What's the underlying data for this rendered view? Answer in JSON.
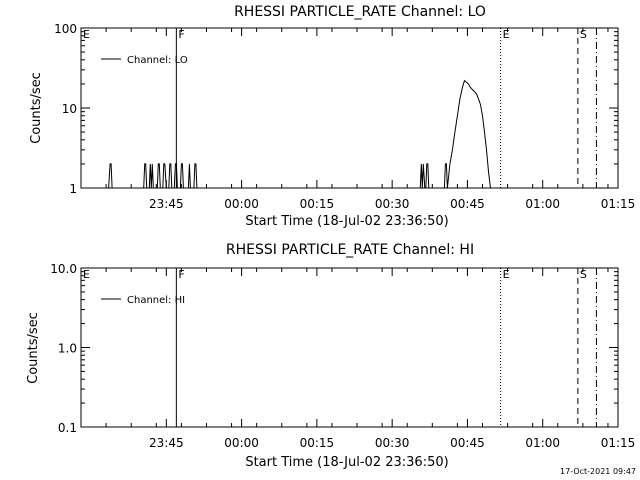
{
  "chart_data": [
    {
      "type": "line",
      "title": "RHESSI PARTICLE_RATE Channel: LO",
      "xlabel": "Start Time (18-Jul-02 23:36:50)",
      "ylabel": "Counts/sec",
      "yscale": "log",
      "ylim": [
        1,
        100
      ],
      "ytick_labels": [
        "1",
        "10",
        "100"
      ],
      "ytick_values": [
        1,
        10,
        100
      ],
      "xlim_min": [
        -9,
        98
      ],
      "xtick_labels": [
        "23:45",
        "00:00",
        "00:15",
        "00:30",
        "00:45",
        "01:00",
        "01:15"
      ],
      "xtick_values": [
        8,
        23,
        38,
        53,
        68,
        83,
        98
      ],
      "legend": "top-left",
      "markers": [
        {
          "label": "E",
          "x": -9,
          "style": "solid"
        },
        {
          "label": "F",
          "x": 10,
          "style": "solid"
        },
        {
          "label": "E",
          "x": 74.6,
          "style": "dotted"
        },
        {
          "label": "S",
          "x": 90,
          "style": "dashed"
        },
        {
          "label": "",
          "x": 93.7,
          "style": "dashdot"
        }
      ],
      "series": [
        {
          "name": "Channel: LO",
          "x": [
            -3.5,
            -3.2,
            -3,
            -2.8,
            -2.5,
            3.5,
            3.7,
            3.9,
            4.1,
            4.3,
            4.6,
            4.8,
            5,
            5.2,
            5.4,
            6.2,
            6.4,
            6.6,
            6.8,
            7,
            7.3,
            7.5,
            7.7,
            8,
            8.2,
            8.5,
            8.7,
            8.9,
            9.1,
            9.3,
            9.6,
            9.8,
            10,
            10.2,
            10.4,
            10.8,
            11,
            11.2,
            11.4,
            11.6,
            12.4,
            12.6,
            12.8,
            13,
            13.2,
            13.5,
            13.7,
            13.9,
            14.1,
            14.3,
            58.6,
            58.8,
            59,
            59.2,
            59.5,
            59.7,
            59.9,
            60.1,
            60.3,
            63.2,
            63.4,
            63.6,
            63.8,
            64,
            64.5,
            65,
            65.5,
            66,
            66.5,
            67,
            67.4,
            67.8,
            68.2,
            68.6,
            69,
            69.4,
            69.8,
            70.2,
            70.6,
            71,
            71.4,
            71.8,
            72.2,
            72.6
          ],
          "y": [
            1,
            2,
            2,
            1,
            1,
            1,
            2,
            2,
            1,
            1,
            1,
            2,
            1,
            2,
            1,
            1,
            2,
            2,
            1,
            1,
            1,
            2,
            2,
            1,
            1,
            1,
            2,
            2,
            1,
            1,
            1,
            2,
            2,
            1,
            1,
            1,
            2,
            2,
            1,
            1,
            1,
            2,
            1,
            1,
            1,
            1,
            2,
            2,
            1,
            1,
            1,
            2,
            1,
            2,
            1,
            1,
            2,
            2,
            1,
            1,
            1,
            2,
            2,
            1,
            2,
            3,
            5,
            8,
            13,
            18,
            22,
            21,
            20,
            18,
            17,
            16,
            15,
            13,
            11,
            8,
            5,
            3,
            1.6,
            1
          ]
        }
      ]
    },
    {
      "type": "line",
      "title": "RHESSI PARTICLE_RATE Channel: HI",
      "xlabel": "Start Time (18-Jul-02 23:36:50)",
      "ylabel": "Counts/sec",
      "yscale": "log",
      "ylim": [
        0.1,
        10
      ],
      "ytick_labels": [
        "0.1",
        "1.0",
        "10.0"
      ],
      "ytick_values": [
        0.1,
        1,
        10
      ],
      "xlim_min": [
        -9,
        98
      ],
      "xtick_labels": [
        "23:45",
        "00:00",
        "00:15",
        "00:30",
        "00:45",
        "01:00",
        "01:15"
      ],
      "xtick_values": [
        8,
        23,
        38,
        53,
        68,
        83,
        98
      ],
      "legend": "top-left",
      "markers": [
        {
          "label": "E",
          "x": -9,
          "style": "solid"
        },
        {
          "label": "F",
          "x": 10,
          "style": "solid"
        },
        {
          "label": "E",
          "x": 74.6,
          "style": "dotted"
        },
        {
          "label": "S",
          "x": 90,
          "style": "dashed"
        },
        {
          "label": "",
          "x": 93.7,
          "style": "dashdot"
        }
      ],
      "series": [
        {
          "name": "Channel: HI",
          "x": [],
          "y": []
        }
      ]
    }
  ],
  "timestamp": "17-Oct-2021 09:47"
}
